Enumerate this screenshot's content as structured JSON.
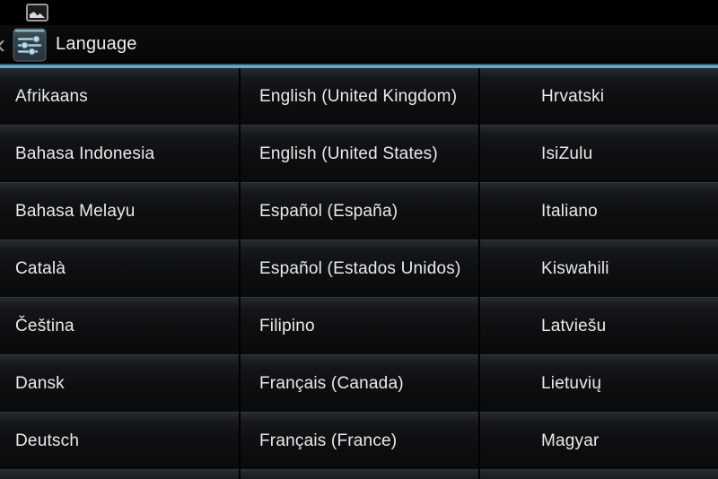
{
  "status_bar": {
    "notification_icon": "screenshot-image-icon"
  },
  "action_bar": {
    "back_glyph": "‹",
    "app_icon": "settings-sliders-icon",
    "title": "Language"
  },
  "accent": {
    "tab_underline_color": "#79bcd9",
    "icon_highlight_color": "#8fc3da",
    "list_divider_color": "#31363c",
    "text_color": "#e9eaea"
  },
  "list": {
    "columns": [
      {
        "items": [
          "Afrikaans",
          "Bahasa Indonesia",
          "Bahasa Melayu",
          "Català",
          "Čeština",
          "Dansk",
          "Deutsch"
        ]
      },
      {
        "items": [
          "English (United Kingdom)",
          "English (United States)",
          "Español (España)",
          "Español (Estados Unidos)",
          "Filipino",
          "Français (Canada)",
          "Français (France)"
        ]
      },
      {
        "items": [
          "Hrvatski",
          "IsiZulu",
          "Italiano",
          "Kiswahili",
          "Latviešu",
          "Lietuvių",
          "Magyar"
        ]
      }
    ]
  }
}
